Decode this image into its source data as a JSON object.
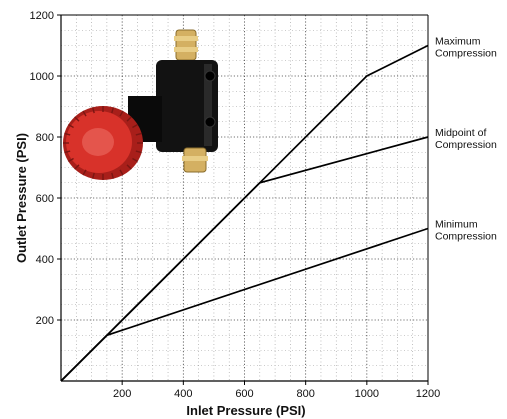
{
  "chart_data": {
    "type": "line",
    "xlabel": "Inlet Pressure (PSI)",
    "ylabel": "Outlet Pressure (PSI)",
    "xlim": [
      0,
      1200
    ],
    "ylim": [
      0,
      1200
    ],
    "x_ticks": [
      "200",
      "400",
      "600",
      "800",
      "1000",
      "1200"
    ],
    "y_ticks": [
      "200",
      "400",
      "600",
      "800",
      "1000",
      "1200"
    ],
    "grid": "dotted",
    "series": [
      {
        "label_lines": [
          "Maximum",
          "Compression"
        ],
        "points": [
          [
            0,
            0
          ],
          [
            150,
            150
          ],
          [
            650,
            650
          ],
          [
            1000,
            1000
          ],
          [
            1200,
            1100
          ]
        ]
      },
      {
        "label_lines": [
          "Midpoint of",
          "Compression"
        ],
        "points": [
          [
            0,
            0
          ],
          [
            150,
            150
          ],
          [
            650,
            650
          ],
          [
            1200,
            800
          ]
        ]
      },
      {
        "label_lines": [
          "Minimum",
          "Compression"
        ],
        "points": [
          [
            0,
            0
          ],
          [
            150,
            150
          ],
          [
            1200,
            500
          ]
        ]
      }
    ]
  },
  "product_photo": {
    "icon": "pressure-regulator-valve-icon",
    "knob_color": "#d8322a",
    "body_color": "#121212",
    "fitting_color": "#d4b062"
  }
}
